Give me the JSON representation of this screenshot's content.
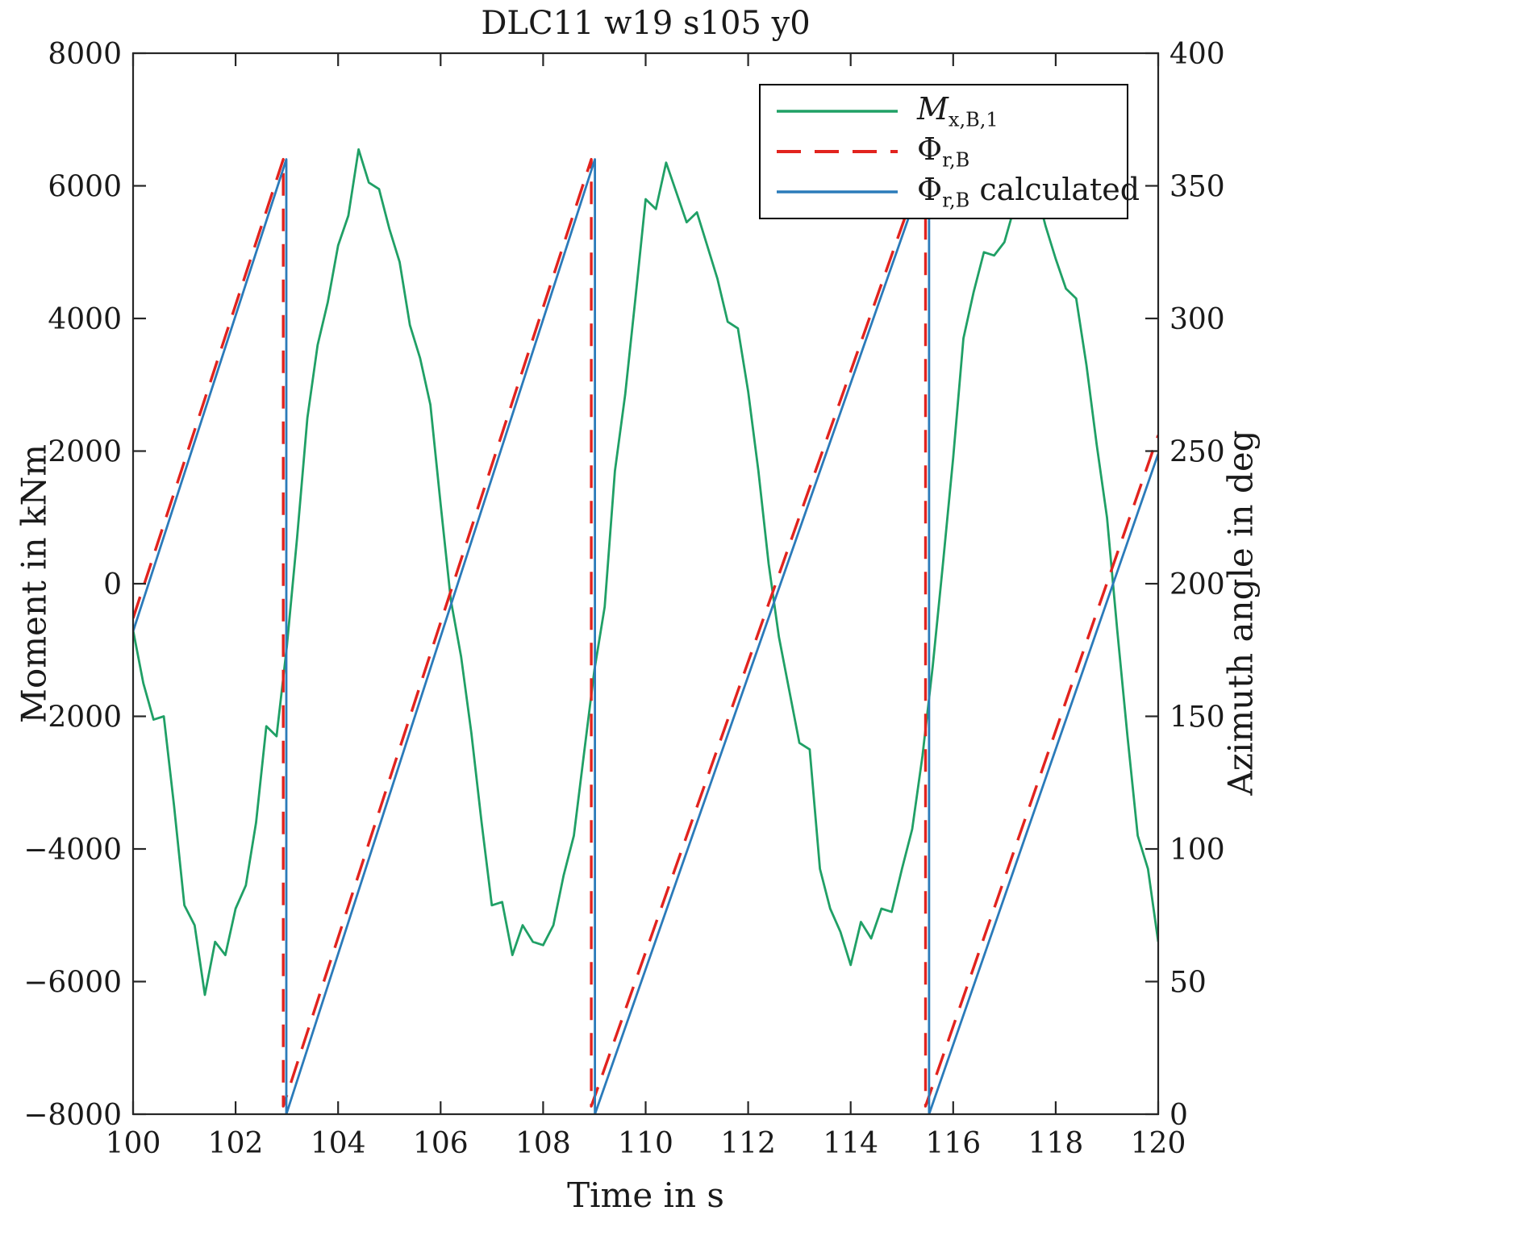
{
  "chart_data": {
    "type": "line",
    "title": "DLC11 w19 s105 y0",
    "xlabel": "Time in s",
    "ylabel": "Moment in kNm",
    "ylabel_right": "Azimuth angle in deg",
    "grid": false,
    "legend_position": "inside-top-right",
    "x_axis": {
      "min": 100,
      "max": 120,
      "ticks": [
        100,
        102,
        104,
        106,
        108,
        110,
        112,
        114,
        116,
        118,
        120
      ]
    },
    "y_axis_left": {
      "min": -8000,
      "max": 8000,
      "ticks": [
        -8000,
        -6000,
        -4000,
        -2000,
        0,
        2000,
        4000,
        6000,
        8000
      ]
    },
    "y_axis_right": {
      "min": 0,
      "max": 400,
      "ticks": [
        0,
        50,
        100,
        150,
        200,
        250,
        300,
        350,
        400
      ]
    },
    "series": [
      {
        "id": "moment-series",
        "name": "M_x,B,1",
        "axis": "left",
        "unit": "kNm",
        "color": "#20a066",
        "style": "solid",
        "width": 2.8,
        "x_start": 100,
        "x_step": 0.2,
        "y": [
          -700,
          -1500,
          -2050,
          -2000,
          -3350,
          -4850,
          -5150,
          -6200,
          -5400,
          -5600,
          -4900,
          -4550,
          -3600,
          -2150,
          -2300,
          -950,
          700,
          2500,
          3600,
          4250,
          5100,
          5550,
          6550,
          6050,
          5950,
          5350,
          4850,
          3900,
          3400,
          2700,
          1200,
          -250,
          -1100,
          -2250,
          -3600,
          -4850,
          -4800,
          -5600,
          -5150,
          -5400,
          -5450,
          -5150,
          -4400,
          -3800,
          -2550,
          -1300,
          -350,
          1700,
          2850,
          4300,
          5800,
          5650,
          6350,
          5900,
          5450,
          5600,
          5100,
          4600,
          3950,
          3850,
          2900,
          1700,
          300,
          -800,
          -1600,
          -2400,
          -2500,
          -4300,
          -4900,
          -5250,
          -5750,
          -5100,
          -5350,
          -4900,
          -4950,
          -4300,
          -3700,
          -2600,
          -1250,
          300,
          1900,
          3700,
          4400,
          5000,
          4950,
          5150,
          5700,
          6450,
          6000,
          5400,
          4900,
          4450,
          4300,
          3300,
          2100,
          1000,
          -700,
          -2300,
          -3800,
          -4300,
          -5400
        ]
      },
      {
        "id": "azimuth-measured-series",
        "name": "Phi_r,B",
        "axis": "right",
        "unit": "deg",
        "color": "#e2231e",
        "style": "dashed",
        "width": 3.4,
        "points": [
          [
            100,
            187
          ],
          [
            102.93,
            360
          ],
          [
            102.93,
            3
          ],
          [
            108.94,
            360
          ],
          [
            108.94,
            3
          ],
          [
            115.46,
            360
          ],
          [
            115.46,
            3
          ],
          [
            120,
            256
          ]
        ]
      },
      {
        "id": "azimuth-calculated-series",
        "name": "Phi_r,B calculated",
        "axis": "right",
        "unit": "deg",
        "color": "#2b7bba",
        "style": "solid",
        "width": 2.8,
        "points": [
          [
            100,
            182
          ],
          [
            102.99,
            360
          ],
          [
            102.99,
            0
          ],
          [
            109.01,
            360
          ],
          [
            109.01,
            0
          ],
          [
            115.53,
            360
          ],
          [
            115.53,
            0
          ],
          [
            120,
            249
          ]
        ]
      }
    ]
  },
  "legend": {
    "items": [
      {
        "main": "M",
        "sub": "x,B,1",
        "suffix": "",
        "italic": true
      },
      {
        "main": "Φ",
        "sub": "r,B",
        "suffix": "",
        "italic": false
      },
      {
        "main": "Φ",
        "sub": "r,B",
        "suffix": " calculated",
        "italic": false
      }
    ]
  }
}
